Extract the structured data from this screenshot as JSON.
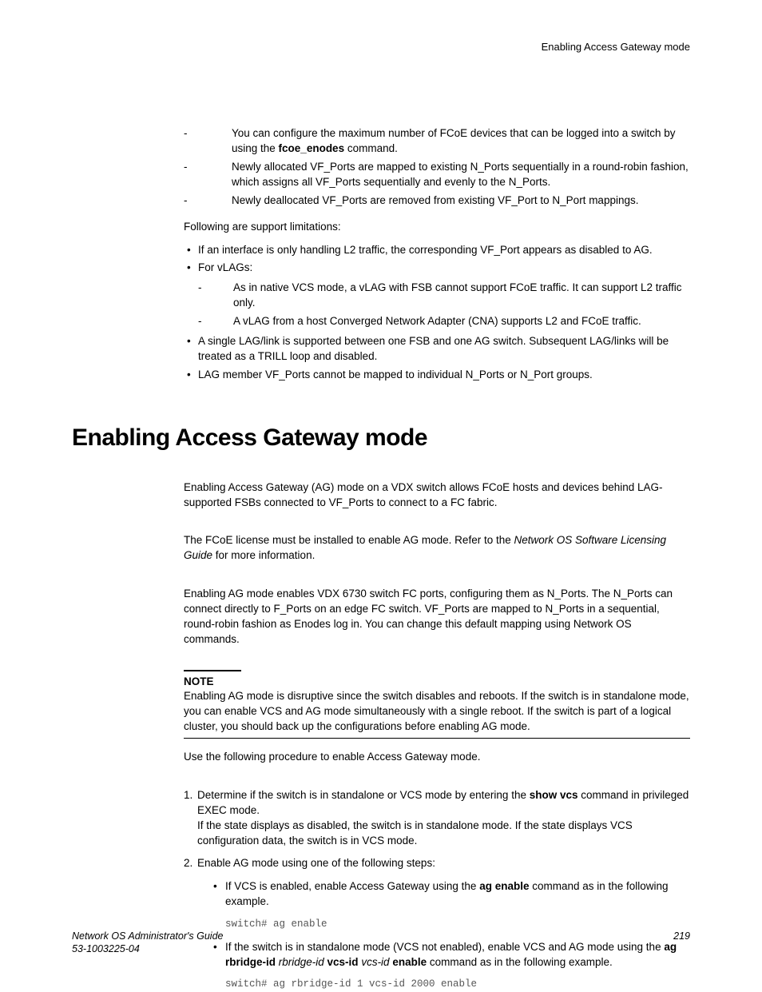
{
  "header": {
    "right": "Enabling Access Gateway mode"
  },
  "top_dash_list": [
    {
      "pre": "You can configure the maximum number of FCoE devices that can be logged into a switch by using the ",
      "bold": "fcoe_enodes",
      "post": " command."
    },
    {
      "text": "Newly allocated VF_Ports are mapped to existing N_Ports sequentially in a round-robin fashion, which assigns all VF_Ports sequentially and evenly to the N_Ports."
    },
    {
      "text": "Newly deallocated VF_Ports are removed from existing VF_Port to N_Port mappings."
    }
  ],
  "support_intro": "Following are support limitations:",
  "support_bullets": {
    "b1": "If an interface is only handling L2 traffic, the corresponding VF_Port appears as disabled to AG.",
    "b2": "For vLAGs:",
    "b2_sub1": "As in native VCS mode, a vLAG with FSB cannot support FCoE traffic. It can support L2 traffic only.",
    "b2_sub2": "A vLAG from a host Converged Network Adapter (CNA) supports L2 and FCoE traffic.",
    "b3": "A single LAG/link is supported between one FSB and one AG switch. Subsequent LAG/links will be treated as a TRILL loop and disabled.",
    "b4": "LAG member VF_Ports cannot be mapped to individual N_Ports or N_Port groups."
  },
  "heading": "Enabling Access Gateway mode",
  "para1": "Enabling Access Gateway (AG) mode on a VDX switch allows FCoE hosts and devices behind LAG-supported FSBs connected to VF_Ports to connect to a FC fabric.",
  "para2": {
    "pre": "The FCoE license must be installed to enable AG mode. Refer to the ",
    "italic": "Network OS Software Licensing Guide",
    "post": " for more information."
  },
  "para3": "Enabling AG mode enables VDX 6730 switch FC ports, configuring them as N_Ports. The N_Ports can connect directly to F_Ports on an edge FC switch. VF_Ports are mapped to N_Ports in a sequential, round-robin fashion as Enodes log in. You can change this default mapping using Network OS commands.",
  "note": {
    "label": "NOTE",
    "text": "Enabling AG mode is disruptive since the switch disables and reboots. If the switch is in standalone mode, you can enable VCS and AG mode simultaneously with a single reboot. If the switch is part of a logical cluster, you should back up the configurations before enabling AG mode."
  },
  "procedure_intro": "Use the following procedure to enable Access Gateway mode.",
  "step1": {
    "pre": "Determine if the switch is in standalone or VCS mode by entering the ",
    "bold": "show vcs",
    "post": " command in privileged EXEC mode.",
    "extra": "If the state displays as disabled, the switch is in standalone mode. If the state displays VCS configuration data, the switch is in VCS mode."
  },
  "step2": {
    "text": "Enable AG mode using one of the following steps:",
    "sub1": {
      "pre": "If VCS is enabled, enable Access Gateway using the ",
      "bold": "ag enable",
      "post": " command as in the following example."
    },
    "code1": "switch# ag enable",
    "sub2": {
      "pre": "If the switch is in standalone mode (VCS not enabled), enable VCS and AG mode using the ",
      "b1": "ag rbridge-id",
      "i1": " rbridge-id ",
      "b2": "vcs-id",
      "i2": " vcs-id ",
      "b3": "enable",
      "post": " command as in the following example."
    },
    "code2": "switch# ag rbridge-id 1 vcs-id 2000 enable"
  },
  "footer": {
    "guide": "Network OS Administrator's Guide",
    "docnum": "53-1003225-04",
    "page": "219"
  }
}
